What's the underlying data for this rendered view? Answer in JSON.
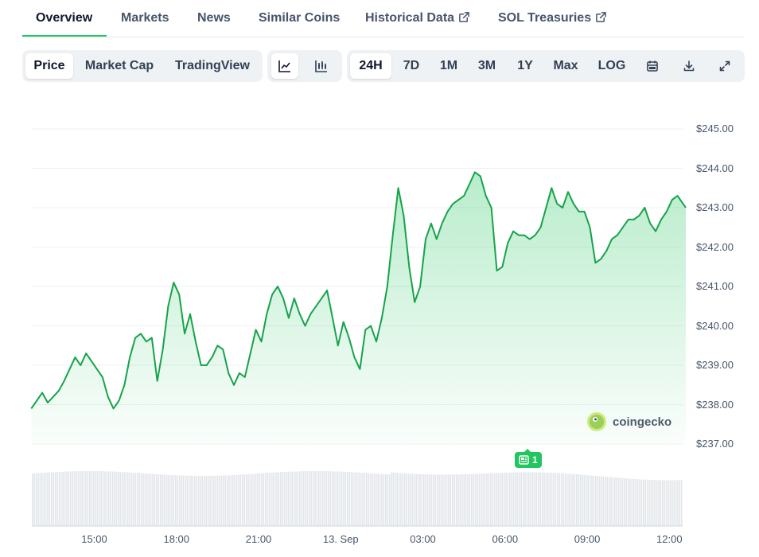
{
  "tabs": {
    "overview": "Overview",
    "markets": "Markets",
    "news": "News",
    "similar": "Similar Coins",
    "historical": "Historical Data",
    "treasuries": "SOL Treasuries"
  },
  "toolbar": {
    "price": "Price",
    "market_cap": "Market Cap",
    "tradingview": "TradingView",
    "ranges": [
      "24H",
      "7D",
      "1M",
      "3M",
      "1Y",
      "Max"
    ],
    "log": "LOG",
    "active_range": "24H",
    "active_view": "Price"
  },
  "news_marker": {
    "count": "1"
  },
  "watermark": "coingecko",
  "colors": {
    "line": "#16a34a",
    "fill": "#22c55e",
    "volume": "#e2e5e9",
    "news": "#22c55e"
  },
  "chart_data": {
    "type": "area",
    "ylim": [
      237.0,
      245.0
    ],
    "yticks": [
      "$245.00",
      "$244.00",
      "$243.00",
      "$242.00",
      "$241.00",
      "$240.00",
      "$239.00",
      "$238.00",
      "$237.00"
    ],
    "xticks": [
      "15:00",
      "18:00",
      "21:00",
      "13. Sep",
      "03:00",
      "06:00",
      "09:00",
      "12:00"
    ],
    "x_start_hour": 12.7,
    "x_end_hour": 36.6,
    "series": [
      {
        "x": [
          12.7,
          12.9,
          13.1,
          13.3,
          13.5,
          13.7,
          13.9,
          14.1,
          14.3,
          14.5,
          14.7,
          14.9,
          15.1,
          15.3,
          15.5,
          15.7,
          15.9,
          16.1,
          16.3,
          16.5,
          16.7,
          16.9,
          17.1,
          17.3,
          17.5,
          17.7,
          17.9,
          18.1,
          18.3,
          18.5,
          18.7,
          18.9,
          19.1,
          19.3,
          19.5,
          19.7,
          19.9,
          20.1,
          20.3,
          20.5,
          20.7,
          20.9,
          21.1,
          21.3,
          21.5,
          21.7,
          21.9,
          22.1,
          22.3,
          22.5,
          22.7,
          22.9,
          23.1,
          23.3,
          23.5,
          23.7,
          23.9,
          24.1,
          24.3,
          24.5,
          24.7,
          24.9,
          25.1,
          25.3,
          25.5,
          25.7,
          25.9,
          26.1,
          26.3,
          26.5,
          26.7,
          26.9,
          27.1,
          27.3,
          27.5,
          27.7,
          27.9,
          28.1,
          28.3,
          28.5,
          28.7,
          28.9,
          29.1,
          29.3,
          29.5,
          29.7,
          29.9,
          30.1,
          30.3,
          30.5,
          30.7,
          30.9,
          31.1,
          31.3,
          31.5,
          31.7,
          31.9,
          32.1,
          32.3,
          32.5,
          32.7,
          32.9,
          33.1,
          33.3,
          33.5,
          33.7,
          33.9,
          34.1,
          34.3,
          34.5,
          34.7,
          34.9,
          35.1,
          35.3,
          35.5,
          35.7,
          35.9,
          36.1,
          36.3,
          36.5,
          36.6
        ],
        "y": [
          237.9,
          238.1,
          238.3,
          238.05,
          238.2,
          238.35,
          238.6,
          238.9,
          239.2,
          239.0,
          239.3,
          239.1,
          238.9,
          238.7,
          238.2,
          237.9,
          238.1,
          238.5,
          239.2,
          239.7,
          239.8,
          239.6,
          239.7,
          238.6,
          239.4,
          240.5,
          241.1,
          240.8,
          239.8,
          240.3,
          239.6,
          239.0,
          239.0,
          239.2,
          239.5,
          239.4,
          238.8,
          238.5,
          238.8,
          238.7,
          239.3,
          239.9,
          239.6,
          240.3,
          240.8,
          241.0,
          240.7,
          240.2,
          240.7,
          240.3,
          240.0,
          240.3,
          240.5,
          240.7,
          240.9,
          240.2,
          239.5,
          240.1,
          239.7,
          239.2,
          238.9,
          239.9,
          240.0,
          239.6,
          240.2,
          241.0,
          242.3,
          243.5,
          242.8,
          241.5,
          240.6,
          241.0,
          242.2,
          242.6,
          242.2,
          242.6,
          242.9,
          243.1,
          243.2,
          243.3,
          243.6,
          243.9,
          243.8,
          243.3,
          243.0,
          241.4,
          241.5,
          242.1,
          242.4,
          242.3,
          242.3,
          242.2,
          242.3,
          242.5,
          243.0,
          243.5,
          243.1,
          243.0,
          243.4,
          243.1,
          242.9,
          242.9,
          242.5,
          241.6,
          241.7,
          241.9,
          242.2,
          242.3,
          242.5,
          242.7,
          242.7,
          242.8,
          243.0,
          242.6,
          242.4,
          242.7,
          242.9,
          243.2,
          243.3,
          243.1,
          243.0
        ]
      }
    ]
  }
}
